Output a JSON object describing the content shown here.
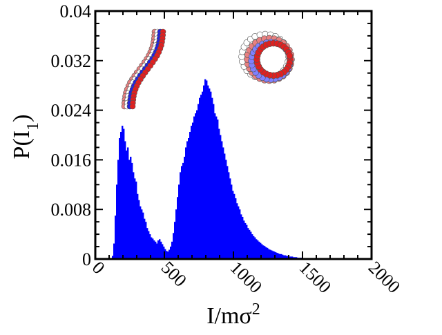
{
  "chart_data": {
    "type": "bar",
    "xlabel_main": "I/mσ",
    "xlabel_sup": "2",
    "ylabel_main": "P(I",
    "ylabel_sub": "1",
    "ylabel_close": ")",
    "xlim": [
      0,
      2000
    ],
    "ylim": [
      0,
      0.04
    ],
    "xticks": [
      "0",
      "500",
      "1000",
      "1500",
      "2000"
    ],
    "yticks": [
      "0",
      "0.008",
      "0.016",
      "0.024",
      "0.032",
      "0.04"
    ],
    "xtick_values": [
      0,
      500,
      1000,
      1500,
      2000
    ],
    "ytick_values": [
      0,
      0.008,
      0.016,
      0.024,
      0.032,
      0.04
    ],
    "bin_start": 120,
    "bin_width": 10,
    "values": [
      0.0005,
      0.0025,
      0.007,
      0.012,
      0.016,
      0.0195,
      0.0205,
      0.0215,
      0.021,
      0.019,
      0.0175,
      0.018,
      0.016,
      0.0165,
      0.0155,
      0.014,
      0.013,
      0.0125,
      0.0105,
      0.0095,
      0.0085,
      0.008,
      0.0075,
      0.0065,
      0.006,
      0.005,
      0.0045,
      0.004,
      0.0035,
      0.0033,
      0.003,
      0.0028,
      0.0025,
      0.003,
      0.0032,
      0.0028,
      0.0024,
      0.002,
      0.0016,
      0.0013,
      0.0012,
      0.0015,
      0.002,
      0.0028,
      0.0042,
      0.006,
      0.008,
      0.01,
      0.012,
      0.014,
      0.015,
      0.0155,
      0.0165,
      0.018,
      0.019,
      0.0195,
      0.0205,
      0.0215,
      0.022,
      0.023,
      0.0235,
      0.024,
      0.025,
      0.026,
      0.0265,
      0.027,
      0.028,
      0.029,
      0.0288,
      0.028,
      0.0275,
      0.027,
      0.026,
      0.025,
      0.0235,
      0.023,
      0.0225,
      0.021,
      0.02,
      0.019,
      0.018,
      0.017,
      0.016,
      0.015,
      0.014,
      0.013,
      0.012,
      0.011,
      0.0105,
      0.0098,
      0.009,
      0.0085,
      0.008,
      0.0072,
      0.0068,
      0.0062,
      0.0058,
      0.0055,
      0.005,
      0.0047,
      0.0044,
      0.004,
      0.0037,
      0.0035,
      0.0032,
      0.003,
      0.0028,
      0.0026,
      0.0024,
      0.0022,
      0.0021,
      0.0019,
      0.0018,
      0.0016,
      0.0015,
      0.0014,
      0.0013,
      0.0012,
      0.0011,
      0.001,
      0.0009,
      0.0008,
      0.0008,
      0.0007,
      0.0006,
      0.0006,
      0.0005,
      0.0005,
      0.0004,
      0.0004,
      0.0004,
      0.0003,
      0.0003,
      0.0003,
      0.0002,
      0.0002,
      0.0002,
      0.0002,
      0.0001,
      0.0001,
      0.0001,
      0.0001,
      0.0001,
      0.0001,
      0.0001,
      0.0001,
      0.0001,
      0.0001,
      0.0001,
      0.0001,
      0.0001,
      0.0001,
      0.0001,
      0.0001,
      0.0001,
      0.0001,
      0.0001,
      0.0001
    ],
    "bar_color": "#0000ff",
    "grid": false,
    "legend": "none"
  },
  "insets": {
    "bead_colors": [
      "#e02020",
      "#ffffff",
      "#2020e0",
      "#e88080",
      "#8080ff"
    ]
  }
}
